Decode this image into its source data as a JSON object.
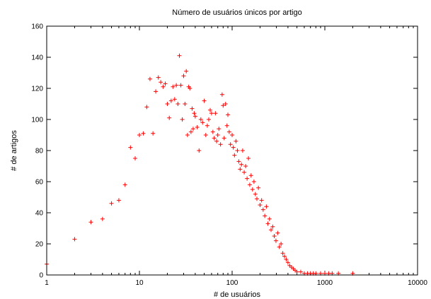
{
  "chart_data": {
    "type": "scatter",
    "title": "Número de usuários únicos por artigo",
    "xlabel": "# de usuários",
    "ylabel": "# de artigos",
    "x_scale": "log",
    "xlim": [
      1,
      10000
    ],
    "ylim": [
      0,
      160
    ],
    "x_ticks": [
      1,
      10,
      100,
      1000,
      10000
    ],
    "x_tick_labels": [
      "1",
      "10",
      "100",
      "1000",
      "10000"
    ],
    "y_ticks": [
      0,
      20,
      40,
      60,
      80,
      100,
      120,
      140,
      160
    ],
    "y_tick_labels": [
      "0",
      "20",
      "40",
      "60",
      "80",
      "100",
      "120",
      "140",
      "160"
    ],
    "grid": false,
    "legend": "none",
    "marker": "+",
    "color": "#ff0000",
    "series": [
      {
        "points": [
          [
            1,
            7
          ],
          [
            2,
            23
          ],
          [
            3,
            34
          ],
          [
            4,
            36
          ],
          [
            5,
            46
          ],
          [
            6,
            48
          ],
          [
            7,
            58
          ],
          [
            8,
            82
          ],
          [
            9,
            75
          ],
          [
            10,
            90
          ],
          [
            11,
            91
          ],
          [
            12,
            108
          ],
          [
            13,
            126
          ],
          [
            14,
            91
          ],
          [
            15,
            118
          ],
          [
            16,
            127
          ],
          [
            17,
            124
          ],
          [
            18,
            121
          ],
          [
            19,
            123
          ],
          [
            20,
            110
          ],
          [
            21,
            101
          ],
          [
            22,
            112
          ],
          [
            23,
            121
          ],
          [
            24,
            113
          ],
          [
            25,
            122
          ],
          [
            26,
            110
          ],
          [
            27,
            141
          ],
          [
            28,
            122
          ],
          [
            29,
            100
          ],
          [
            30,
            128
          ],
          [
            31,
            110
          ],
          [
            32,
            131
          ],
          [
            33,
            90
          ],
          [
            34,
            121
          ],
          [
            35,
            120
          ],
          [
            36,
            92
          ],
          [
            37,
            107
          ],
          [
            38,
            94
          ],
          [
            39,
            104
          ],
          [
            40,
            102
          ],
          [
            42,
            95
          ],
          [
            44,
            80
          ],
          [
            46,
            100
          ],
          [
            48,
            98
          ],
          [
            50,
            112
          ],
          [
            52,
            90
          ],
          [
            54,
            96
          ],
          [
            56,
            100
          ],
          [
            58,
            106
          ],
          [
            60,
            104
          ],
          [
            62,
            92
          ],
          [
            64,
            88
          ],
          [
            66,
            104
          ],
          [
            68,
            86
          ],
          [
            70,
            90
          ],
          [
            72,
            94
          ],
          [
            75,
            84
          ],
          [
            78,
            116
          ],
          [
            80,
            109
          ],
          [
            82,
            88
          ],
          [
            85,
            110
          ],
          [
            88,
            96
          ],
          [
            90,
            103
          ],
          [
            93,
            92
          ],
          [
            96,
            84
          ],
          [
            100,
            90
          ],
          [
            103,
            82
          ],
          [
            106,
            77
          ],
          [
            110,
            86
          ],
          [
            114,
            80
          ],
          [
            118,
            73
          ],
          [
            122,
            68
          ],
          [
            126,
            71
          ],
          [
            130,
            80
          ],
          [
            135,
            66
          ],
          [
            140,
            70
          ],
          [
            145,
            62
          ],
          [
            150,
            75
          ],
          [
            155,
            58
          ],
          [
            160,
            64
          ],
          [
            166,
            55
          ],
          [
            172,
            60
          ],
          [
            178,
            52
          ],
          [
            185,
            49
          ],
          [
            192,
            56
          ],
          [
            200,
            45
          ],
          [
            208,
            48
          ],
          [
            216,
            42
          ],
          [
            225,
            38
          ],
          [
            234,
            44
          ],
          [
            243,
            33
          ],
          [
            253,
            36
          ],
          [
            263,
            29
          ],
          [
            274,
            31
          ],
          [
            285,
            25
          ],
          [
            297,
            22
          ],
          [
            310,
            27
          ],
          [
            323,
            18
          ],
          [
            337,
            20
          ],
          [
            352,
            14
          ],
          [
            367,
            12
          ],
          [
            383,
            10
          ],
          [
            400,
            8
          ],
          [
            418,
            6
          ],
          [
            437,
            5
          ],
          [
            457,
            4
          ],
          [
            478,
            3
          ],
          [
            500,
            2
          ],
          [
            550,
            2
          ],
          [
            600,
            1
          ],
          [
            650,
            1
          ],
          [
            700,
            1
          ],
          [
            750,
            1
          ],
          [
            800,
            1
          ],
          [
            900,
            1
          ],
          [
            1000,
            1
          ],
          [
            1100,
            1
          ],
          [
            1200,
            1
          ],
          [
            1400,
            1
          ],
          [
            2000,
            1
          ]
        ]
      }
    ]
  }
}
